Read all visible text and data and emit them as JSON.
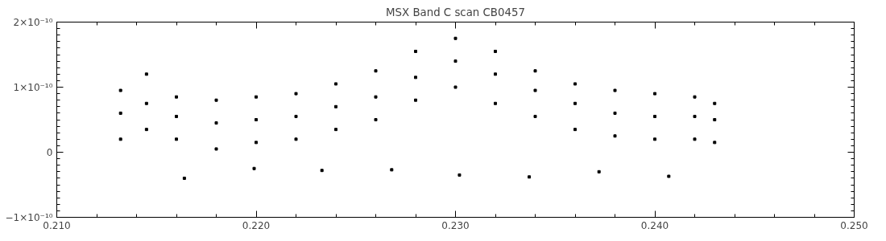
{
  "chart_data": {
    "type": "scatter",
    "title": "MSX Band C scan CB0457",
    "x": [
      0.2132,
      0.2132,
      0.2132,
      0.2145,
      0.2145,
      0.2145,
      0.216,
      0.216,
      0.216,
      0.2164,
      0.218,
      0.218,
      0.218,
      0.2199,
      0.22,
      0.22,
      0.22,
      0.222,
      0.222,
      0.222,
      0.2233,
      0.224,
      0.224,
      0.224,
      0.226,
      0.226,
      0.226,
      0.2268,
      0.228,
      0.228,
      0.228,
      0.23,
      0.23,
      0.23,
      0.2302,
      0.232,
      0.232,
      0.232,
      0.234,
      0.234,
      0.234,
      0.2337,
      0.236,
      0.236,
      0.236,
      0.2372,
      0.238,
      0.238,
      0.238,
      0.24,
      0.24,
      0.24,
      0.2407,
      0.242,
      0.242,
      0.242,
      0.243,
      0.243,
      0.243
    ],
    "series": [
      {
        "color": "#000000",
        "values": [
          6e-11,
          9.5e-11,
          2e-11,
          7.5e-11,
          1.2e-10,
          3.5e-11,
          5.5e-11,
          8.5e-11,
          2e-11,
          -4e-11,
          4.5e-11,
          8e-11,
          5e-12,
          -2.5e-11,
          5e-11,
          8.5e-11,
          1.5e-11,
          5.5e-11,
          9e-11,
          2e-11,
          -2.8e-11,
          7e-11,
          1.05e-10,
          3.5e-11,
          8.5e-11,
          1.25e-10,
          5e-11,
          -2.7e-11,
          1.15e-10,
          1.55e-10,
          8e-11,
          1.4e-10,
          1.75e-10,
          1e-10,
          -3.5e-11,
          1.2e-10,
          1.55e-10,
          7.5e-11,
          9.5e-11,
          1.25e-10,
          5.5e-11,
          -3.8e-11,
          7.5e-11,
          1.05e-10,
          3.5e-11,
          -3e-11,
          6e-11,
          9.5e-11,
          2.5e-11,
          5.5e-11,
          9e-11,
          2e-11,
          -3.7e-11,
          5.5e-11,
          8.5e-11,
          2e-11,
          5e-11,
          7.5e-11,
          1.5e-11
        ]
      }
    ],
    "xlim": [
      0.21,
      0.25
    ],
    "ylim": [
      -1e-10,
      2e-10
    ],
    "xticks": [
      {
        "value": 0.21,
        "label": "0.210"
      },
      {
        "value": 0.22,
        "label": "0.220"
      },
      {
        "value": 0.23,
        "label": "0.230"
      },
      {
        "value": 0.24,
        "label": "0.240"
      },
      {
        "value": 0.25,
        "label": "0.250"
      }
    ],
    "yticks": [
      {
        "value": -1e-10,
        "label": "−1×10⁻¹⁰"
      },
      {
        "value": 0,
        "label": "0"
      },
      {
        "value": 1e-10,
        "label": "1×10⁻¹⁰"
      },
      {
        "value": 2e-10,
        "label": "2×10⁻¹⁰"
      }
    ],
    "marker": "square",
    "grid": false
  }
}
